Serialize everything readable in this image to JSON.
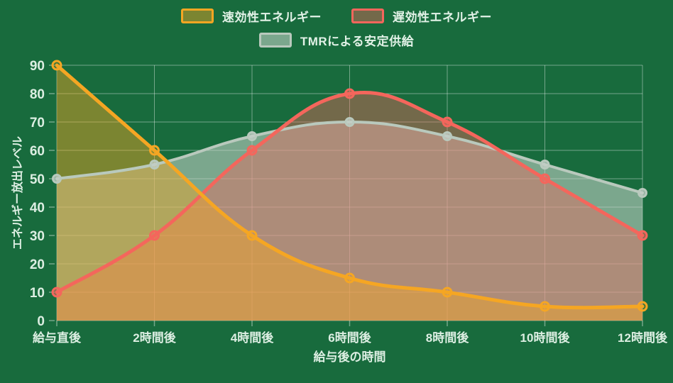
{
  "chart_data": {
    "type": "area",
    "categories": [
      "給与直後",
      "2時間後",
      "4時間後",
      "6時間後",
      "8時間後",
      "10時間後",
      "12時間後"
    ],
    "series": [
      {
        "name": "速効性エネルギー",
        "values": [
          90,
          60,
          30,
          15,
          10,
          5,
          5
        ],
        "color": "#f5a623",
        "fill": "rgba(245,166,35,0.45)",
        "point_fill": "rgba(245,166,35,0.18)",
        "line_width": 5,
        "point_radius": 6
      },
      {
        "name": "遅効性エネルギー",
        "values": [
          10,
          30,
          60,
          80,
          70,
          50,
          30
        ],
        "color": "#f4665c",
        "fill": "rgba(244,102,92,0.42)",
        "point_fill": "rgba(244,102,92,0.55)",
        "line_width": 5,
        "point_radius": 6
      },
      {
        "name": "TMRによる安定供給",
        "values": [
          50,
          55,
          65,
          70,
          65,
          55,
          45
        ],
        "color": "#b9c9bd",
        "fill": "rgba(205,216,208,0.55)",
        "point_fill": "rgba(196,206,199,0.75)",
        "line_width": 4,
        "point_radius": 5.5
      }
    ],
    "xlabel": "給与後の時間",
    "ylabel": "エネルギー放出レベル",
    "ylim": [
      0,
      90
    ],
    "ytick_step": 10,
    "grid": true,
    "legend_position": "top",
    "background": "#186b3d",
    "text_color": "#dceee2",
    "grid_color": "rgba(255,255,255,0.40)",
    "curve_tension": 0.2
  }
}
